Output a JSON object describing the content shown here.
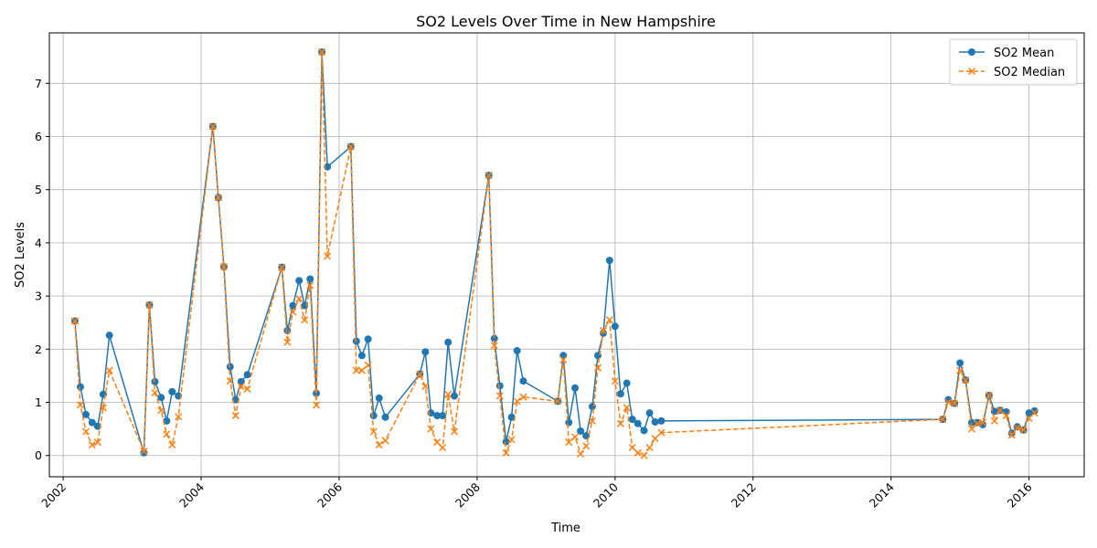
{
  "chart_data": {
    "type": "line",
    "title": "SO2 Levels Over Time in New Hampshire",
    "xlabel": "Time",
    "ylabel": "SO2 Levels",
    "xlim": [
      2001.8,
      2016.8
    ],
    "ylim": [
      -0.4,
      7.95
    ],
    "xticks": [
      2002,
      2004,
      2006,
      2008,
      2010,
      2012,
      2014,
      2016
    ],
    "yticks": [
      0,
      1,
      2,
      3,
      4,
      5,
      6,
      7
    ],
    "grid": true,
    "legend_position": "top-right",
    "x": [
      2002.17,
      2002.25,
      2002.33,
      2002.42,
      2002.5,
      2002.58,
      2002.67,
      2003.17,
      2003.25,
      2003.33,
      2003.42,
      2003.5,
      2003.58,
      2003.67,
      2004.17,
      2004.25,
      2004.33,
      2004.42,
      2004.5,
      2004.58,
      2004.67,
      2005.17,
      2005.25,
      2005.33,
      2005.42,
      2005.5,
      2005.58,
      2005.67,
      2005.75,
      2005.83,
      2006.17,
      2006.25,
      2006.33,
      2006.42,
      2006.5,
      2006.58,
      2006.67,
      2007.17,
      2007.25,
      2007.33,
      2007.42,
      2007.5,
      2007.58,
      2007.67,
      2008.17,
      2008.25,
      2008.33,
      2008.42,
      2008.5,
      2008.58,
      2008.67,
      2009.17,
      2009.25,
      2009.33,
      2009.42,
      2009.5,
      2009.58,
      2009.67,
      2009.75,
      2009.83,
      2009.92,
      2010.0,
      2010.08,
      2010.17,
      2010.25,
      2010.33,
      2010.42,
      2010.5,
      2010.58,
      2010.67,
      2014.75,
      2014.83,
      2014.92,
      2015.0,
      2015.08,
      2015.17,
      2015.25,
      2015.33,
      2015.42,
      2015.5,
      2015.58,
      2015.67,
      2015.75,
      2015.83,
      2015.92,
      2016.0,
      2016.08
    ],
    "series": [
      {
        "name": "SO2 Mean",
        "color": "#1f77b4",
        "marker": "circle",
        "linestyle": "solid",
        "values": [
          2.53,
          1.29,
          0.77,
          0.62,
          0.55,
          1.15,
          2.26,
          0.05,
          2.83,
          1.39,
          1.09,
          0.65,
          1.2,
          1.12,
          6.19,
          4.85,
          3.55,
          1.67,
          1.05,
          1.39,
          1.52,
          3.54,
          2.35,
          2.82,
          3.29,
          2.82,
          3.32,
          1.17,
          7.59,
          5.43,
          5.81,
          2.15,
          1.88,
          2.19,
          0.75,
          1.08,
          0.72,
          1.53,
          1.95,
          0.8,
          0.75,
          0.75,
          2.13,
          1.12,
          5.27,
          2.2,
          1.31,
          0.26,
          0.72,
          1.97,
          1.4,
          1.02,
          1.88,
          0.62,
          1.27,
          0.46,
          0.37,
          0.92,
          1.88,
          2.3,
          3.67,
          2.43,
          1.16,
          1.36,
          0.68,
          0.6,
          0.47,
          0.8,
          0.63,
          0.65,
          0.68,
          1.05,
          0.98,
          1.74,
          1.42,
          0.62,
          0.62,
          0.58,
          1.13,
          0.83,
          0.85,
          0.82,
          0.42,
          0.54,
          0.48,
          0.8,
          0.84
        ]
      },
      {
        "name": "SO2 Median",
        "color": "#ff7f0e",
        "marker": "x",
        "linestyle": "dashed",
        "values": [
          2.53,
          0.95,
          0.45,
          0.2,
          0.25,
          0.9,
          1.6,
          0.08,
          2.83,
          1.18,
          0.85,
          0.4,
          0.2,
          0.73,
          6.19,
          4.85,
          3.55,
          1.4,
          0.75,
          1.3,
          1.25,
          3.54,
          2.13,
          2.7,
          2.95,
          2.55,
          3.2,
          0.95,
          7.59,
          3.75,
          5.81,
          1.6,
          1.6,
          1.7,
          0.45,
          0.2,
          0.28,
          1.53,
          1.3,
          0.5,
          0.25,
          0.15,
          1.15,
          0.45,
          5.27,
          2.07,
          1.12,
          0.05,
          0.3,
          1.02,
          1.1,
          1.02,
          1.8,
          0.25,
          0.35,
          0.03,
          0.18,
          0.65,
          1.65,
          2.35,
          2.55,
          1.4,
          0.6,
          0.9,
          0.15,
          0.05,
          0.0,
          0.15,
          0.32,
          0.43,
          0.68,
          1.0,
          0.98,
          1.6,
          1.42,
          0.5,
          0.6,
          0.62,
          1.13,
          0.65,
          0.85,
          0.75,
          0.38,
          0.52,
          0.48,
          0.7,
          0.8
        ]
      }
    ]
  }
}
